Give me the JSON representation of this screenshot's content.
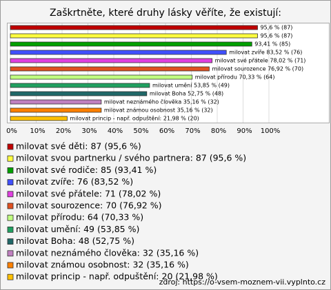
{
  "chart_data": {
    "type": "bar",
    "orientation": "horizontal",
    "title": "Zaškrtněte, které druhy lásky věříte, že existují:",
    "categories": [
      "milovat své děti: 87 (95,6 %)",
      "milovat svou partnerku / svého partnera: 87 (95,6 %)",
      "milovat své rodiče: 85 (93,41 %)",
      "milovat zvíře: 76 (83,52 %)",
      "milovat své přátele: 71 (78,02 %)",
      "milovat sourozence: 70 (76,92 %)",
      "milovat přírodu: 64 (70,33 %)",
      "milovat umění: 49 (53,85 %)",
      "milovat Boha: 48 (52,75 %)",
      "milovat neznámého člověka: 32 (35,16 %)",
      "milovat známou osobnost: 32 (35,16 %)",
      "milovat princip - např. odpuštění: 20 (21,98 %)"
    ],
    "values": [
      95.6,
      95.6,
      93.41,
      83.52,
      78.02,
      76.92,
      70.33,
      53.85,
      52.75,
      35.16,
      35.16,
      21.98
    ],
    "value_labels": [
      "95,6 % (87)",
      "95,6 % (87)",
      "93,41 % (85)",
      "milovat zvíře 83,52 % (76)",
      "milovat své přátele 78,02 % (71)",
      "milovat sourozence 76,92 % (70)",
      "milovat přírodu 70,33 % (64)",
      "milovat umění 53,85 % (49)",
      "milovat Boha 52,75 % (48)",
      "milovat neznámého člověka 35,16 % (32)",
      "milovat známou osobnost 35,16 % (32)",
      "milovat princip - např. odpuštění: 21,98 % (20)"
    ],
    "colors": [
      "#c00000",
      "#ffff40",
      "#00a000",
      "#4050ff",
      "#e040e0",
      "#e05020",
      "#c0ff80",
      "#20a060",
      "#206868",
      "#c080c0",
      "#ff8000",
      "#ffc000"
    ],
    "xlim": [
      0,
      124
    ],
    "xticks": [
      {
        "value": 0,
        "label": "0%"
      },
      {
        "value": 10,
        "label": "10%"
      },
      {
        "value": 20,
        "label": "20%"
      },
      {
        "value": 30,
        "label": "30%"
      },
      {
        "value": 40,
        "label": "40%"
      },
      {
        "value": 50,
        "label": "50%"
      },
      {
        "value": 60,
        "label": "60%"
      },
      {
        "value": 70,
        "label": "70%"
      },
      {
        "value": 80,
        "label": "80%"
      },
      {
        "value": 90,
        "label": "90%"
      },
      {
        "value": 100,
        "label": "100%"
      }
    ],
    "grid": true,
    "source": "zdroj: https://o-vsem-moznem-vii.vyplnto.cz"
  }
}
